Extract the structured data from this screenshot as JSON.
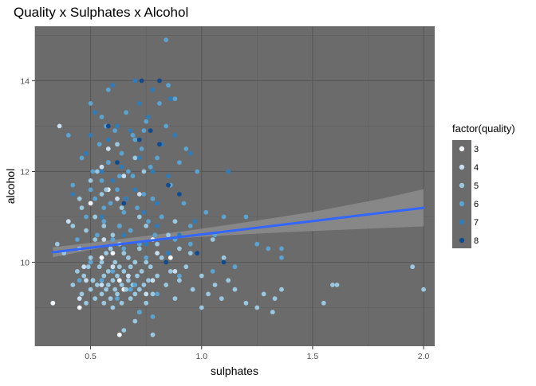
{
  "chart_data": {
    "type": "scatter",
    "title": "Quality x Sulphates x Alcohol",
    "xlabel": "sulphates",
    "ylabel": "alcohol",
    "xlim": [
      0.25,
      2.05
    ],
    "ylim": [
      8.15,
      15.2
    ],
    "x_ticks": [
      {
        "value": 0.5,
        "label": "0.5"
      },
      {
        "value": 1.0,
        "label": "1.0"
      },
      {
        "value": 1.5,
        "label": "1.5"
      },
      {
        "value": 2.0,
        "label": "2.0"
      }
    ],
    "y_ticks": [
      {
        "value": 10,
        "label": "10"
      },
      {
        "value": 12,
        "label": "12"
      },
      {
        "value": 14,
        "label": "14"
      }
    ],
    "grid": true,
    "panel_background": "#6b6b6b",
    "legend": {
      "title": "factor(quality)",
      "position": "right",
      "items": [
        {
          "label": "3",
          "color": "#f2f7fc"
        },
        {
          "label": "4",
          "color": "#c9def0"
        },
        {
          "label": "5",
          "color": "#9ac8e0"
        },
        {
          "label": "6",
          "color": "#5ba3d0"
        },
        {
          "label": "7",
          "color": "#2f7cbb"
        },
        {
          "label": "8",
          "color": "#124a8e"
        }
      ]
    },
    "series": [
      {
        "name": "3",
        "points": [
          [
            0.33,
            9.1
          ],
          [
            0.45,
            9.0
          ],
          [
            0.51,
            9.6
          ],
          [
            0.55,
            10.1
          ],
          [
            0.6,
            10.2
          ],
          [
            0.63,
            9.6
          ],
          [
            0.5,
            11.3
          ],
          [
            0.58,
            11.6
          ],
          [
            0.65,
            9.4
          ],
          [
            0.78,
            10.5
          ],
          [
            0.86,
            10.1
          ],
          [
            0.63,
            8.4
          ]
        ]
      },
      {
        "name": "4",
        "points": [
          [
            0.4,
            10.9
          ],
          [
            0.45,
            9.2
          ],
          [
            0.48,
            9.6
          ],
          [
            0.5,
            10.0
          ],
          [
            0.52,
            11.0
          ],
          [
            0.55,
            9.5
          ],
          [
            0.58,
            12.5
          ],
          [
            0.6,
            9.9
          ],
          [
            0.63,
            10.8
          ],
          [
            0.67,
            9.7
          ],
          [
            0.72,
            11.5
          ],
          [
            0.75,
            9.3
          ],
          [
            0.8,
            10.2
          ],
          [
            0.88,
            9.8
          ],
          [
            0.36,
            13.0
          ],
          [
            0.55,
            12.1
          ],
          [
            0.65,
            11.9
          ],
          [
            0.7,
            10.0
          ],
          [
            0.56,
            10.5
          ],
          [
            0.47,
            9.9
          ],
          [
            0.62,
            11.4
          ],
          [
            0.78,
            9.6
          ]
        ]
      },
      {
        "name": "5",
        "points": [
          [
            0.35,
            10.4
          ],
          [
            0.38,
            10.2
          ],
          [
            0.42,
            9.5
          ],
          [
            0.44,
            9.8
          ],
          [
            0.45,
            10.3
          ],
          [
            0.46,
            9.3
          ],
          [
            0.47,
            9.7
          ],
          [
            0.48,
            9.1
          ],
          [
            0.49,
            9.9
          ],
          [
            0.5,
            9.4
          ],
          [
            0.5,
            10.1
          ],
          [
            0.51,
            9.6
          ],
          [
            0.52,
            9.2
          ],
          [
            0.52,
            10.5
          ],
          [
            0.53,
            9.5
          ],
          [
            0.54,
            9.9
          ],
          [
            0.55,
            9.3
          ],
          [
            0.55,
            10.0
          ],
          [
            0.56,
            9.7
          ],
          [
            0.56,
            9.1
          ],
          [
            0.57,
            9.4
          ],
          [
            0.57,
            10.2
          ],
          [
            0.58,
            9.5
          ],
          [
            0.58,
            9.8
          ],
          [
            0.59,
            9.2
          ],
          [
            0.59,
            10.3
          ],
          [
            0.6,
            9.6
          ],
          [
            0.6,
            9.0
          ],
          [
            0.61,
            9.4
          ],
          [
            0.61,
            10.0
          ],
          [
            0.62,
            9.7
          ],
          [
            0.62,
            9.3
          ],
          [
            0.63,
            9.9
          ],
          [
            0.63,
            10.4
          ],
          [
            0.64,
            9.5
          ],
          [
            0.64,
            9.1
          ],
          [
            0.65,
            9.8
          ],
          [
            0.65,
            10.2
          ],
          [
            0.66,
            9.4
          ],
          [
            0.67,
            9.6
          ],
          [
            0.67,
            10.1
          ],
          [
            0.68,
            9.2
          ],
          [
            0.68,
            9.9
          ],
          [
            0.69,
            9.5
          ],
          [
            0.7,
            10.0
          ],
          [
            0.7,
            9.3
          ],
          [
            0.71,
            9.7
          ],
          [
            0.72,
            9.4
          ],
          [
            0.72,
            10.3
          ],
          [
            0.73,
            9.8
          ],
          [
            0.74,
            9.5
          ],
          [
            0.75,
            9.1
          ],
          [
            0.75,
            10.0
          ],
          [
            0.76,
            9.6
          ],
          [
            0.77,
            9.9
          ],
          [
            0.78,
            9.3
          ],
          [
            0.8,
            9.7
          ],
          [
            0.82,
            10.1
          ],
          [
            0.84,
            9.5
          ],
          [
            0.86,
            9.8
          ],
          [
            0.88,
            9.2
          ],
          [
            0.9,
            9.6
          ],
          [
            0.93,
            9.9
          ],
          [
            0.96,
            9.4
          ],
          [
            1.0,
            9.7
          ],
          [
            1.03,
            9.3
          ],
          [
            1.06,
            9.5
          ],
          [
            1.09,
            9.2
          ],
          [
            1.12,
            9.6
          ],
          [
            1.15,
            9.4
          ],
          [
            1.2,
            9.1
          ],
          [
            1.28,
            9.3
          ],
          [
            1.33,
            9.2
          ],
          [
            1.36,
            9.4
          ],
          [
            1.55,
            9.1
          ],
          [
            1.59,
            9.5
          ],
          [
            1.61,
            9.5
          ],
          [
            1.95,
            9.9
          ],
          [
            2.0,
            9.4
          ],
          [
            0.52,
            11.0
          ],
          [
            0.56,
            10.8
          ],
          [
            0.6,
            10.6
          ],
          [
            0.64,
            11.2
          ],
          [
            0.68,
            10.7
          ],
          [
            0.72,
            11.0
          ],
          [
            0.55,
            11.5
          ],
          [
            0.5,
            11.8
          ],
          [
            0.58,
            12.2
          ],
          [
            0.62,
            12.6
          ],
          [
            0.7,
            12.3
          ],
          [
            0.45,
            11.4
          ],
          [
            0.48,
            10.7
          ],
          [
            0.75,
            10.8
          ],
          [
            0.8,
            10.4
          ],
          [
            0.85,
            10.6
          ],
          [
            0.9,
            10.3
          ],
          [
            0.95,
            10.2
          ],
          [
            1.05,
            10.5
          ],
          [
            1.1,
            10.1
          ],
          [
            0.7,
            8.7
          ],
          [
            0.78,
            8.4
          ],
          [
            0.72,
            8.9
          ],
          [
            0.65,
            8.5
          ],
          [
            1.0,
            9.0
          ],
          [
            1.25,
            9.0
          ],
          [
            1.32,
            8.9
          ],
          [
            0.42,
            10.8
          ],
          [
            0.46,
            11.2
          ],
          [
            0.53,
            12.0
          ],
          [
            0.57,
            11.6
          ],
          [
            0.66,
            11.4
          ],
          [
            0.74,
            12.0
          ],
          [
            0.82,
            11.0
          ],
          [
            0.88,
            10.9
          ]
        ]
      },
      {
        "name": "6",
        "points": [
          [
            0.4,
            12.8
          ],
          [
            0.42,
            11.7
          ],
          [
            0.44,
            10.5
          ],
          [
            0.46,
            12.3
          ],
          [
            0.48,
            11.0
          ],
          [
            0.5,
            13.5
          ],
          [
            0.51,
            12.0
          ],
          [
            0.52,
            11.4
          ],
          [
            0.53,
            10.6
          ],
          [
            0.54,
            12.6
          ],
          [
            0.55,
            11.8
          ],
          [
            0.56,
            10.9
          ],
          [
            0.57,
            13.0
          ],
          [
            0.58,
            12.2
          ],
          [
            0.59,
            11.3
          ],
          [
            0.6,
            10.5
          ],
          [
            0.61,
            12.9
          ],
          [
            0.62,
            11.6
          ],
          [
            0.63,
            10.8
          ],
          [
            0.64,
            12.4
          ],
          [
            0.65,
            11.1
          ],
          [
            0.66,
            13.3
          ],
          [
            0.67,
            12.0
          ],
          [
            0.68,
            10.7
          ],
          [
            0.69,
            11.9
          ],
          [
            0.7,
            12.7
          ],
          [
            0.71,
            11.2
          ],
          [
            0.72,
            10.4
          ],
          [
            0.73,
            12.5
          ],
          [
            0.74,
            11.5
          ],
          [
            0.75,
            13.1
          ],
          [
            0.76,
            10.9
          ],
          [
            0.77,
            12.1
          ],
          [
            0.78,
            11.4
          ],
          [
            0.79,
            10.6
          ],
          [
            0.8,
            12.3
          ],
          [
            0.82,
            11.0
          ],
          [
            0.84,
            13.0
          ],
          [
            0.86,
            11.7
          ],
          [
            0.88,
            10.5
          ],
          [
            0.9,
            12.2
          ],
          [
            0.92,
            11.3
          ],
          [
            0.95,
            10.8
          ],
          [
            0.98,
            12.0
          ],
          [
            1.02,
            11.1
          ],
          [
            1.06,
            10.6
          ],
          [
            1.12,
            12.0
          ],
          [
            1.1,
            11.0
          ],
          [
            1.2,
            11.0
          ],
          [
            1.3,
            10.3
          ],
          [
            1.36,
            10.1
          ],
          [
            0.84,
            14.9
          ],
          [
            0.85,
            13.9
          ],
          [
            0.5,
            10.0
          ],
          [
            0.55,
            9.6
          ],
          [
            0.6,
            9.8
          ],
          [
            0.65,
            10.3
          ],
          [
            0.7,
            9.5
          ],
          [
            0.75,
            10.1
          ],
          [
            0.8,
            9.3
          ],
          [
            0.85,
            10.2
          ],
          [
            0.9,
            9.7
          ],
          [
            0.95,
            10.4
          ],
          [
            1.05,
            9.8
          ],
          [
            1.15,
            9.9
          ],
          [
            1.25,
            10.4
          ],
          [
            1.36,
            10.3
          ],
          [
            0.45,
            9.6
          ],
          [
            0.62,
            9.2
          ],
          [
            0.68,
            9.4
          ],
          [
            0.72,
            8.9
          ],
          [
            0.78,
            8.8
          ],
          [
            0.5,
            11.6
          ],
          [
            0.56,
            11.2
          ],
          [
            0.63,
            11.9
          ],
          [
            0.69,
            12.8
          ],
          [
            0.74,
            12.9
          ],
          [
            0.81,
            13.5
          ],
          [
            0.88,
            13.6
          ],
          [
            0.93,
            12.5
          ],
          [
            0.58,
            13.8
          ],
          [
            0.55,
            13.2
          ]
        ]
      },
      {
        "name": "7",
        "points": [
          [
            0.42,
            11.5
          ],
          [
            0.48,
            12.4
          ],
          [
            0.52,
            13.3
          ],
          [
            0.55,
            11.0
          ],
          [
            0.58,
            12.7
          ],
          [
            0.6,
            11.8
          ],
          [
            0.62,
            13.0
          ],
          [
            0.64,
            12.1
          ],
          [
            0.66,
            11.4
          ],
          [
            0.68,
            12.9
          ],
          [
            0.7,
            11.6
          ],
          [
            0.72,
            12.3
          ],
          [
            0.74,
            11.1
          ],
          [
            0.76,
            13.2
          ],
          [
            0.78,
            12.0
          ],
          [
            0.8,
            11.3
          ],
          [
            0.82,
            12.6
          ],
          [
            0.85,
            11.9
          ],
          [
            0.88,
            12.8
          ],
          [
            0.9,
            11.5
          ],
          [
            0.95,
            12.4
          ],
          [
            0.75,
            10.4
          ],
          [
            0.8,
            10.8
          ],
          [
            0.85,
            10.2
          ],
          [
            0.9,
            10.6
          ],
          [
            0.97,
            10.9
          ],
          [
            1.1,
            10.0
          ],
          [
            1.12,
            12.0
          ],
          [
            0.7,
            14.0
          ],
          [
            0.78,
            13.8
          ],
          [
            0.86,
            13.6
          ],
          [
            0.72,
            13.5
          ],
          [
            0.6,
            13.9
          ],
          [
            0.65,
            10.6
          ],
          [
            0.55,
            12.0
          ],
          [
            0.5,
            12.8
          ]
        ]
      },
      {
        "name": "8",
        "points": [
          [
            0.73,
            14.0
          ],
          [
            0.81,
            14.0
          ],
          [
            0.77,
            12.9
          ],
          [
            0.81,
            12.6
          ],
          [
            0.85,
            11.7
          ],
          [
            0.72,
            12.7
          ],
          [
            0.65,
            11.3
          ],
          [
            0.62,
            12.2
          ],
          [
            0.58,
            13.0
          ],
          [
            0.84,
            10.0
          ],
          [
            0.98,
            10.2
          ],
          [
            1.1,
            10.0
          ],
          [
            0.9,
            11.5
          ]
        ]
      }
    ],
    "trend_line": {
      "x": [
        0.33,
        2.0
      ],
      "y": [
        10.22,
        11.2
      ],
      "color": "#3366ff"
    },
    "confidence_band": {
      "x": [
        0.33,
        0.6,
        0.9,
        1.2,
        1.5,
        1.8,
        2.0
      ],
      "lower": [
        10.11,
        10.37,
        10.53,
        10.62,
        10.69,
        10.75,
        10.79
      ],
      "upper": [
        10.33,
        10.49,
        10.67,
        10.88,
        11.11,
        11.39,
        11.61
      ]
    }
  }
}
